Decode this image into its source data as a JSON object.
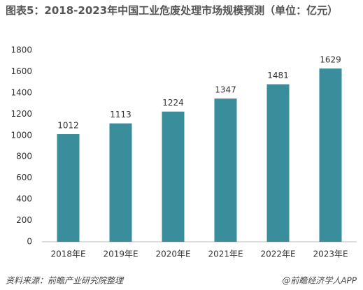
{
  "chart_data": {
    "type": "bar",
    "title": "图表5：2018-2023年中国工业危废处理市场规模预测（单位：亿元）",
    "categories": [
      "2018年E",
      "2019年E",
      "2020年E",
      "2021年E",
      "2022年E",
      "2023年E"
    ],
    "values": [
      1012,
      1113,
      1224,
      1347,
      1481,
      1629
    ],
    "color": "#3a8e9c",
    "ylim": [
      0,
      1800
    ],
    "yticks": [
      0,
      200,
      400,
      600,
      800,
      1000,
      1200,
      1400,
      1600,
      1800
    ],
    "grid": false,
    "source": "资料来源：前瞻产业研究院整理",
    "credit": "@前瞻经济学人APP"
  }
}
